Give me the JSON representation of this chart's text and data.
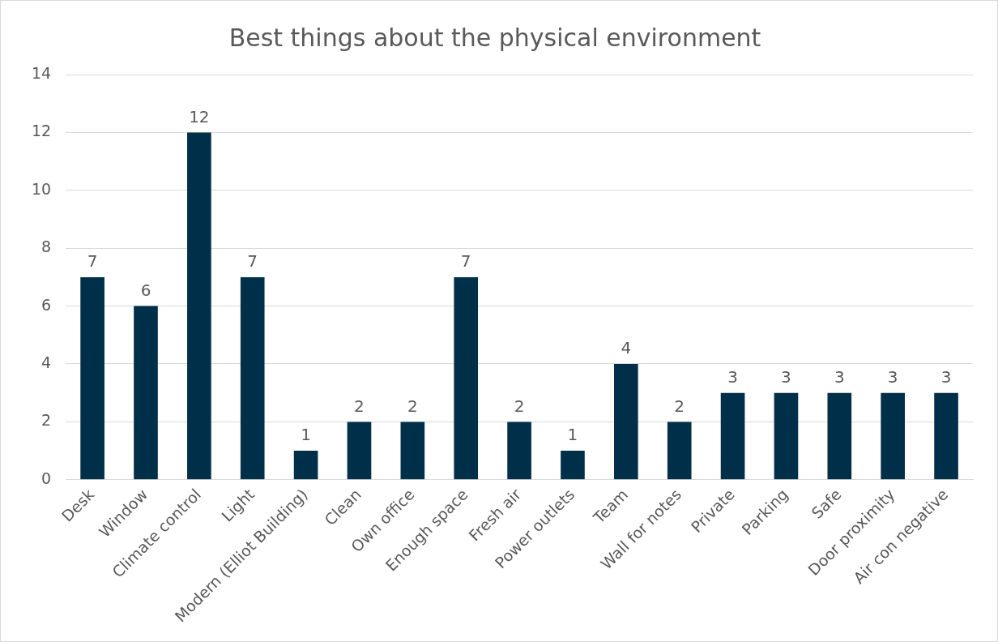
{
  "chart_data": {
    "type": "bar",
    "title": "Best things about the physical environment",
    "categories": [
      "Desk",
      "Window",
      "Climate control",
      "Light",
      "Modern (Elliot Building)",
      "Clean",
      "Own office",
      "Enough space",
      "Fresh air",
      "Power outlets",
      "Team",
      "Wall for notes",
      "Private",
      "Parking",
      "Safe",
      "Door proximity",
      "Air con negative"
    ],
    "values": [
      7,
      6,
      12,
      7,
      1,
      2,
      2,
      7,
      2,
      1,
      4,
      2,
      3,
      3,
      3,
      3,
      3
    ],
    "color": "#003049",
    "ylim": [
      0,
      14
    ],
    "yticks": [
      0,
      2,
      4,
      6,
      8,
      10,
      12,
      14
    ],
    "grid": "y",
    "data_labels": true,
    "legend": false
  }
}
